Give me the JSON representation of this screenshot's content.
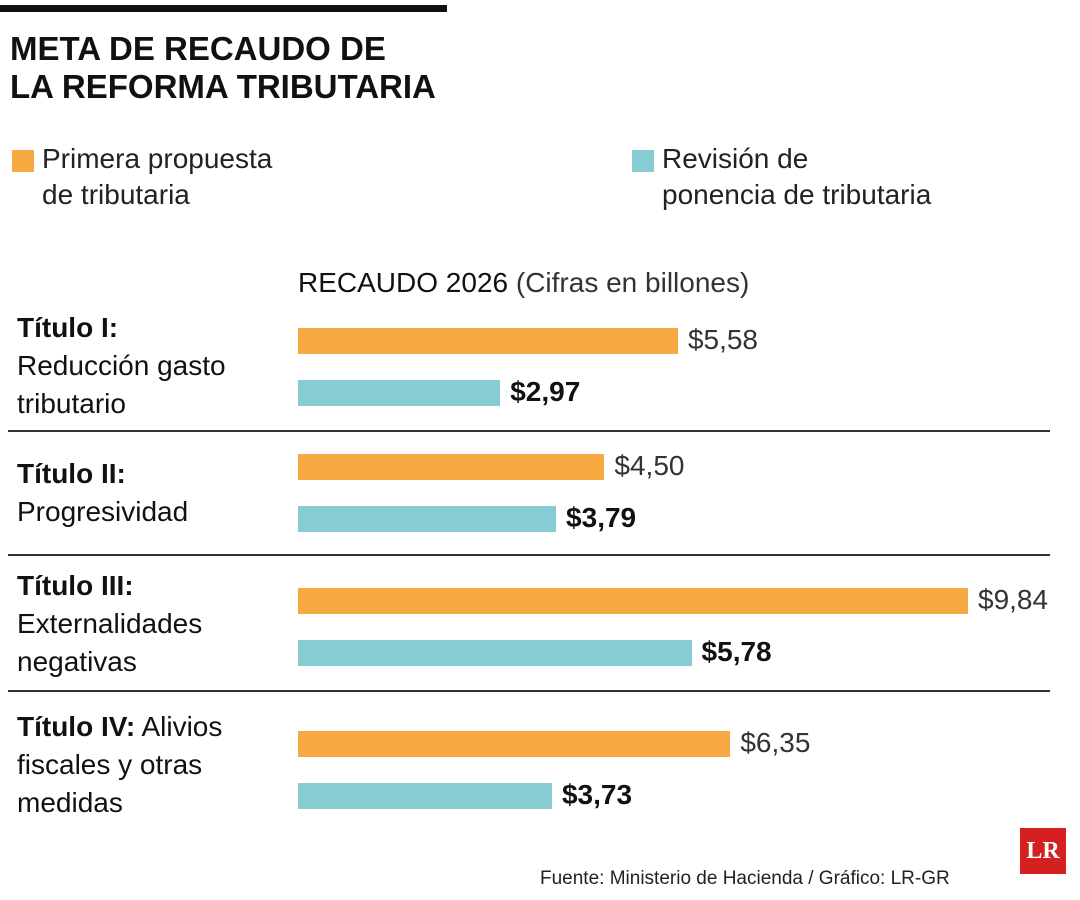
{
  "chart_data": {
    "type": "bar",
    "orientation": "horizontal",
    "title": "META DE RECAUDO DE\nLA REFORMA TRIBUTARIA",
    "subtitle": "RECAUDO 2026",
    "subtitle_note": "(Cifras en billones)",
    "categories": [
      "Título I:",
      "Título II:",
      "Título III:",
      "Título IV:"
    ],
    "category_descriptions": [
      "Reducción gasto\ntributario",
      "Progresividad",
      "Externalidades\nnegativas",
      " Alivios\nfiscales y otras\nmedidas"
    ],
    "series": [
      {
        "name": "Primera propuesta\nde tributaria",
        "color": "#f5a940",
        "values": [
          5.58,
          4.5,
          9.84,
          6.35
        ],
        "value_labels": [
          "$5,58",
          "$4,50",
          "$9,84",
          "$6,35"
        ]
      },
      {
        "name": "Revisión de\nponencia de tributaria",
        "color": "#86ccd2",
        "values": [
          2.97,
          3.79,
          5.78,
          3.73
        ],
        "value_labels": [
          "$2,97",
          "$3,79",
          "$5,78",
          "$3,73"
        ]
      }
    ],
    "source": "Fuente:  Ministerio de Hacienda / Gráfico: LR-GR",
    "logo": "LR"
  }
}
